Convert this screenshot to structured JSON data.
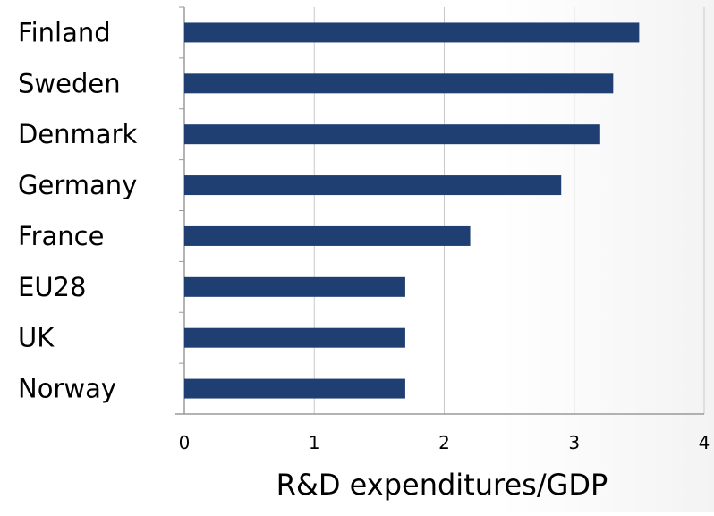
{
  "chart_data": {
    "type": "bar",
    "orientation": "horizontal",
    "categories": [
      "Finland",
      "Sweden",
      "Denmark",
      "Germany",
      "France",
      "EU28",
      "UK",
      "Norway"
    ],
    "values": [
      3.5,
      3.3,
      3.2,
      2.9,
      2.2,
      1.7,
      1.7,
      1.7
    ],
    "xlabel": "R&D expenditures/GDP",
    "ylabel": "",
    "xlim": [
      0,
      4
    ],
    "xticks": [
      "0",
      "1",
      "2",
      "3",
      "4"
    ],
    "grid": "vertical",
    "bar_color": "#1f3f73",
    "grid_color": "#c8c8c8"
  }
}
